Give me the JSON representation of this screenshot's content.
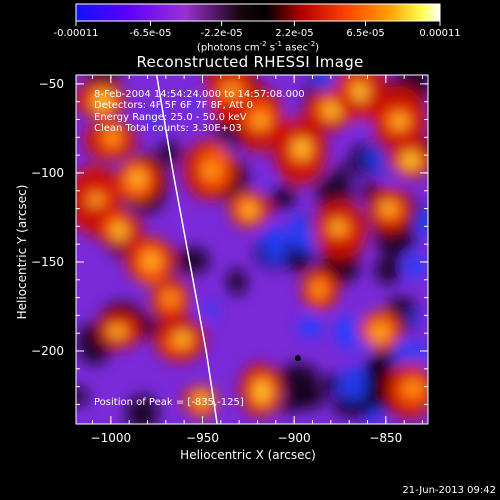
{
  "chart_data": {
    "type": "heatmap",
    "title": "Reconstructed RHESSI Image",
    "xlabel": "Heliocentric X (arcsec)",
    "ylabel": "Heliocentric Y (arcsec)",
    "xlim": [
      -1019,
      -827
    ],
    "ylim": [
      -241,
      -45
    ],
    "x_ticks": [
      -1000,
      -950,
      -900,
      -850
    ],
    "y_ticks": [
      -50,
      -100,
      -150,
      -200
    ],
    "colorbar": {
      "ticks": [
        -0.00011,
        -6.5e-05,
        -2.2e-05,
        2.2e-05,
        6.5e-05,
        0.00011
      ],
      "tick_labels": [
        "-0.00011",
        "-6.5e-05",
        "-2.2e-05",
        "2.2e-05",
        "6.5e-05",
        "0.00011"
      ],
      "range": [
        -0.00011,
        0.00011
      ],
      "units": "(photons cm-2 s-1 asec-2)",
      "colors": [
        "#1010ff",
        "#6a00ff",
        "#9b30d0",
        "#000000",
        "#cc0000",
        "#ff5500",
        "#ffaa00",
        "#ffff40",
        "#ffffff"
      ]
    },
    "annotations": [
      "8-Feb-2004 14:54:24.000 to 14:57:08.000",
      "Detectors: 4F 5F 6F 7F 8F, Att 0",
      "Energy Range: 25.0 - 50.0 keV",
      "Clean      Total counts: 3.30E+03"
    ],
    "peak_label": "Position of Peak = [-835,-125]",
    "peak": [
      -835,
      -125
    ],
    "limb_curve": [
      [
        -975,
        -45
      ],
      [
        -966,
        -100
      ],
      [
        -957,
        -150
      ],
      [
        -948,
        -200
      ],
      [
        -942,
        -241
      ]
    ],
    "marker": [
      -898,
      -204
    ],
    "grid": false,
    "legend": "none"
  },
  "footer": {
    "date": "21-Jun-2013 09:42"
  }
}
